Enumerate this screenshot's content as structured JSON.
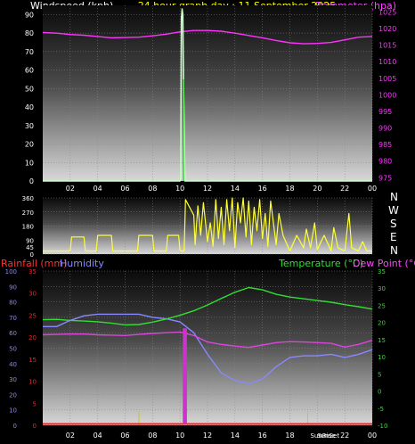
{
  "header": {
    "left_label": "Windspeed (kph)",
    "center_label": "24 hour graph day : 11 September 2025",
    "right_label": "Barometer (hpa)"
  },
  "legend_bottom": {
    "rainfall": "Rainfall (mm)",
    "humidity": "Humidity",
    "temperature": "Temperature (°C)",
    "dewpoint": "Dew Point (°C)"
  },
  "sun_labels": {
    "sunrise": "SunRise",
    "sunset": "SunSet"
  },
  "compass": {
    "n": "N",
    "w": "W",
    "s": "S",
    "e": "E",
    "n2": "N"
  },
  "colors": {
    "windspeed": "#c8ffc8",
    "barometer": "#ff33ff",
    "direction": "#ffff33",
    "rainfall": "#ff2020",
    "humidity": "#8888ff",
    "temperature": "#33dd33",
    "dewpoint": "#dd44dd",
    "title": "#ffff00"
  },
  "chart_data": [
    {
      "type": "line",
      "name_left": "Windspeed (kph)",
      "name_right": "Barometer (hpa)",
      "x_ticks": [
        "02",
        "04",
        "06",
        "08",
        "10",
        "12",
        "14",
        "16",
        "18",
        "20",
        "22",
        "00"
      ],
      "y_left_ticks": [
        "0",
        "10",
        "20",
        "30",
        "40",
        "50",
        "60",
        "70",
        "80",
        "90"
      ],
      "y_right_ticks": [
        "975",
        "980",
        "985",
        "990",
        "995",
        "1000",
        "1005",
        "1010",
        "1015",
        "1020",
        "1025"
      ],
      "ylim_left": [
        0,
        95
      ],
      "ylim_right": [
        974,
        1027
      ],
      "x_range_hours": [
        0,
        24
      ],
      "series": [
        {
          "name": "Windspeed (kph)",
          "axis": "left",
          "x": [
            0,
            10.0,
            10.05,
            10.1,
            10.15,
            10.2,
            10.25,
            10.3,
            10.35,
            10.45,
            24
          ],
          "values": [
            0,
            0,
            2,
            88,
            93,
            90,
            55,
            30,
            0,
            0,
            0
          ]
        },
        {
          "name": "Barometer (hpa)",
          "axis": "right",
          "x": [
            0,
            1,
            2,
            3,
            4,
            5,
            6,
            7,
            8,
            9,
            10,
            11,
            12,
            13,
            14,
            15,
            16,
            17,
            18,
            19,
            20,
            21,
            22,
            23,
            24
          ],
          "values": [
            1018.8,
            1018.6,
            1018.2,
            1018.0,
            1017.6,
            1017.2,
            1017.3,
            1017.4,
            1017.8,
            1018.3,
            1019.0,
            1019.4,
            1019.4,
            1019.2,
            1018.6,
            1017.9,
            1017.2,
            1016.4,
            1015.7,
            1015.4,
            1015.5,
            1015.8,
            1016.6,
            1017.4,
            1017.6
          ]
        }
      ]
    },
    {
      "type": "line",
      "name": "Wind Direction",
      "x_ticks": [
        "02",
        "04",
        "06",
        "08",
        "10",
        "12",
        "14",
        "16",
        "18",
        "20",
        "22",
        "00"
      ],
      "y_ticks": [
        "0",
        "90",
        "180",
        "270",
        "360"
      ],
      "y_extra_tick": "45",
      "ylim": [
        0,
        360
      ],
      "series": [
        {
          "name": "Wind Direction",
          "x": [
            0,
            0.4,
            0.5,
            2.0,
            2.1,
            3.0,
            3.1,
            3.9,
            4.0,
            5.0,
            5.1,
            6.9,
            7.0,
            8.0,
            8.1,
            9.0,
            9.1,
            9.9,
            10.0,
            10.3,
            10.4,
            11.0,
            11.1,
            11.3,
            11.5,
            11.7,
            12.0,
            12.2,
            12.4,
            12.6,
            12.8,
            13.0,
            13.2,
            13.4,
            13.6,
            13.8,
            14.0,
            14.2,
            14.4,
            14.6,
            14.8,
            15.0,
            15.2,
            15.4,
            15.6,
            15.8,
            16.0,
            16.2,
            16.4,
            16.6,
            17.0,
            17.2,
            17.5,
            17.8,
            18.0,
            18.5,
            19.0,
            19.2,
            19.5,
            19.8,
            20.0,
            20.5,
            21.0,
            21.2,
            21.5,
            22.0,
            22.3,
            22.5,
            23.0,
            23.3,
            23.6,
            24
          ],
          "values": [
            20,
            20,
            20,
            20,
            110,
            110,
            20,
            20,
            120,
            120,
            20,
            20,
            120,
            120,
            20,
            20,
            120,
            120,
            20,
            20,
            350,
            250,
            60,
            310,
            120,
            330,
            80,
            200,
            50,
            350,
            100,
            300,
            60,
            350,
            150,
            360,
            40,
            330,
            200,
            360,
            110,
            340,
            60,
            300,
            150,
            350,
            100,
            260,
            50,
            340,
            60,
            260,
            120,
            60,
            20,
            120,
            40,
            160,
            40,
            200,
            30,
            120,
            20,
            170,
            40,
            20,
            260,
            40,
            20,
            80,
            20,
            20
          ]
        }
      ]
    },
    {
      "type": "line",
      "name_left": "Rainfall (mm) / Humidity",
      "name_right": "Temperature (°C) / Dew Point (°C)",
      "x_ticks": [
        "02",
        "04",
        "06",
        "08",
        "10",
        "12",
        "14",
        "16",
        "18",
        "SunRise",
        "SunSet",
        "22",
        "00"
      ],
      "humidity_ticks": [
        "0",
        "10",
        "20",
        "30",
        "40",
        "50",
        "60",
        "70",
        "80",
        "90",
        "100"
      ],
      "rainfall_ticks": [
        "0",
        "5",
        "10",
        "15",
        "20",
        "25",
        "30",
        "35"
      ],
      "temp_ticks": [
        "-10",
        "-5",
        "0",
        "5",
        "10",
        "15",
        "20",
        "25",
        "30",
        "35"
      ],
      "ylim_humidity": [
        0,
        100
      ],
      "ylim_rainfall": [
        0,
        35
      ],
      "ylim_temp": [
        -10,
        35
      ],
      "series": [
        {
          "name": "Temperature (°C)",
          "axis": "temp",
          "x": [
            0,
            1,
            2,
            3,
            4,
            5,
            6,
            7,
            8,
            9,
            10,
            11,
            12,
            13,
            14,
            15,
            16,
            17,
            18,
            19,
            20,
            21,
            22,
            23,
            24
          ],
          "values": [
            20.8,
            20.9,
            20.6,
            20.4,
            20.2,
            19.8,
            19.3,
            19.4,
            20.1,
            21.0,
            22.1,
            23.4,
            25.1,
            27.0,
            28.8,
            30.2,
            29.5,
            28.2,
            27.4,
            26.9,
            26.4,
            25.9,
            25.2,
            24.6,
            23.9
          ]
        },
        {
          "name": "Dew Point (°C)",
          "axis": "temp",
          "x": [
            0,
            1,
            2,
            3,
            4,
            5,
            6,
            7,
            8,
            9,
            10,
            11,
            12,
            13,
            14,
            15,
            16,
            17,
            18,
            19,
            20,
            21,
            22,
            23,
            24
          ],
          "values": [
            16.4,
            16.5,
            16.6,
            16.6,
            16.4,
            16.3,
            16.2,
            16.5,
            16.8,
            17.0,
            17.2,
            16.2,
            14.3,
            13.6,
            13.1,
            12.7,
            13.4,
            14.1,
            14.4,
            14.3,
            14.1,
            13.9,
            12.8,
            13.6,
            14.8
          ]
        },
        {
          "name": "Humidity",
          "axis": "humidity",
          "x": [
            0,
            1,
            2,
            3,
            4,
            5,
            6,
            7,
            8,
            9,
            10,
            11,
            12,
            13,
            14,
            15,
            16,
            17,
            18,
            19,
            20,
            21,
            22,
            23,
            24
          ],
          "values": [
            64,
            64,
            68,
            71,
            72,
            72,
            72,
            72,
            70,
            69,
            67,
            60,
            46,
            34,
            29,
            27,
            30,
            38,
            44,
            45,
            45,
            46,
            44,
            46,
            49
          ]
        },
        {
          "name": "Rainfall (mm)",
          "axis": "rainfall",
          "x": [
            0,
            10.2,
            10.25,
            10.5,
            10.55,
            24
          ],
          "values": [
            0.3,
            0.3,
            22,
            22,
            0.3,
            0.3
          ]
        }
      ]
    }
  ]
}
